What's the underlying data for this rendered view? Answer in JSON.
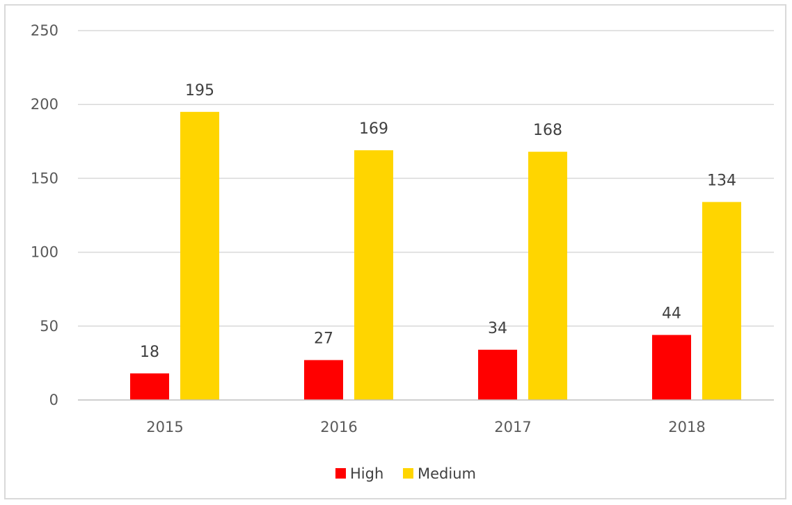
{
  "chart_data": {
    "type": "bar",
    "categories": [
      "2015",
      "2016",
      "2017",
      "2018"
    ],
    "series": [
      {
        "name": "High",
        "values": [
          18,
          27,
          34,
          44
        ],
        "color": "#ff0000"
      },
      {
        "name": "Medium",
        "values": [
          195,
          169,
          168,
          134
        ],
        "color": "#ffd500"
      }
    ],
    "ylim": [
      0,
      250
    ],
    "yticks": [
      0,
      50,
      100,
      150,
      200,
      250
    ],
    "grid": true,
    "legend_position": "bottom",
    "data_labels": true,
    "gridline_color": "#d9d9d9",
    "axis_line_color": "#bfbfbf"
  }
}
